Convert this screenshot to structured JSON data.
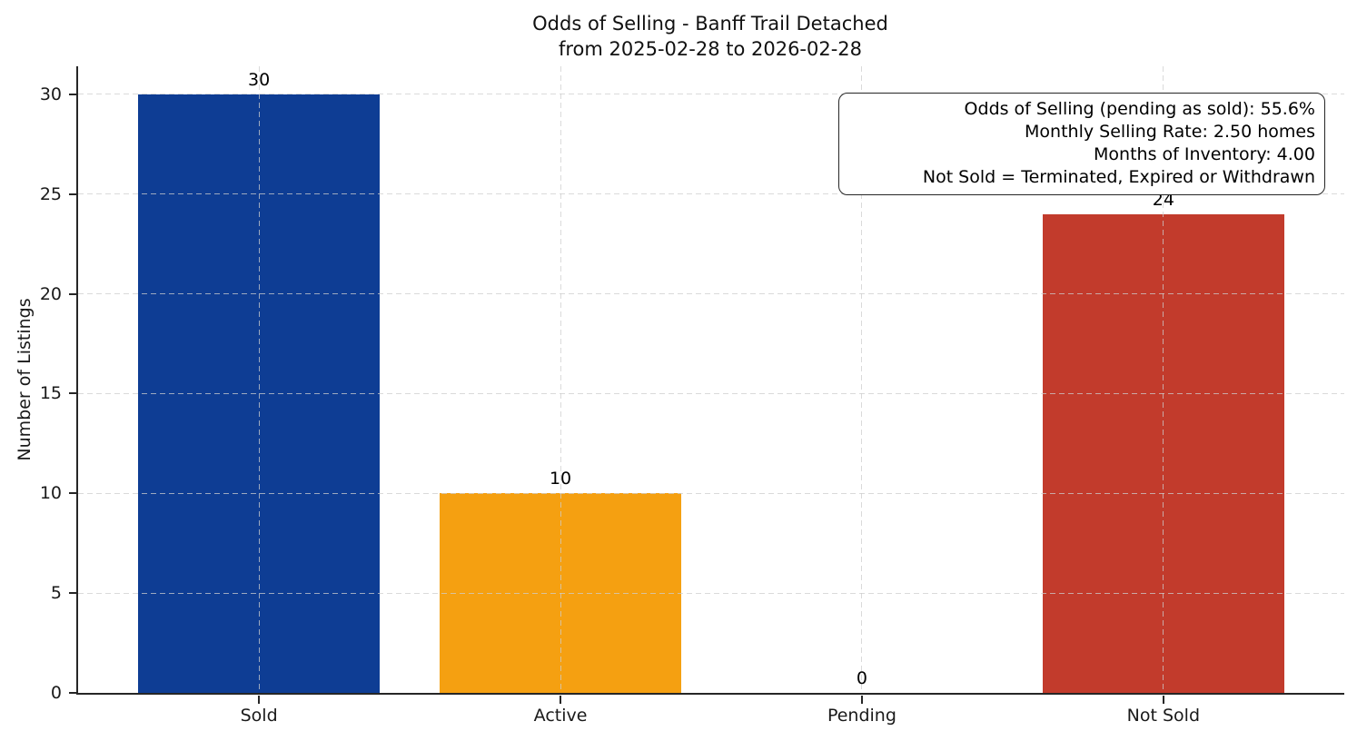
{
  "title": {
    "line1": "Odds of Selling - Banff Trail Detached",
    "line2": "from 2025-02-28 to 2026-02-28"
  },
  "chart_data": {
    "type": "bar",
    "title": "Odds of Selling - Banff Trail Detached from 2025-02-28 to 2026-02-28",
    "categories": [
      "Sold",
      "Active",
      "Pending",
      "Not Sold"
    ],
    "values": [
      30,
      10,
      0,
      24
    ],
    "value_labels": [
      "30",
      "10",
      "0",
      "24"
    ],
    "bar_colors": [
      "#0e3d94",
      "#f5a011",
      null,
      "#c23b2c"
    ],
    "xlabel": "",
    "ylabel": "Number of Listings",
    "yticks": [
      0,
      5,
      10,
      15,
      20,
      25,
      30
    ],
    "ylim": [
      0,
      31.5
    ],
    "grid": true,
    "grid_style": "dashed",
    "legend": false,
    "annotation_lines": [
      "Odds of Selling (pending as sold): 55.6%",
      "Monthly Selling Rate: 2.50 homes",
      "Months of Inventory: 4.00",
      "Not Sold = Terminated, Expired or Withdrawn"
    ]
  },
  "colors": {
    "axis": "#262626",
    "grid": "#cdcdcd",
    "background": "#ffffff",
    "text": "#111111",
    "sold_bar": "#0e3d94",
    "active_bar": "#f5a011",
    "not_sold_bar": "#c23b2c"
  }
}
